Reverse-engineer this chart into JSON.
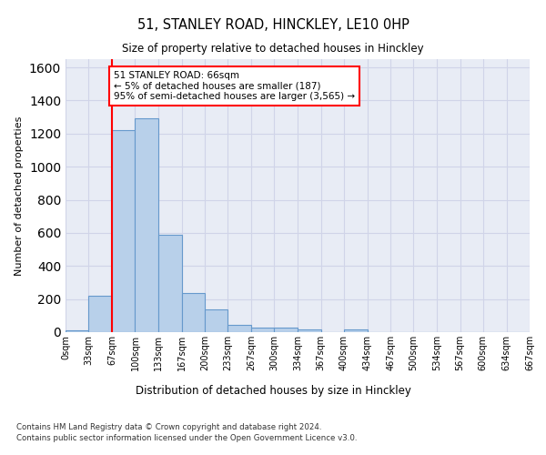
{
  "title": "51, STANLEY ROAD, HINCKLEY, LE10 0HP",
  "subtitle": "Size of property relative to detached houses in Hinckley",
  "xlabel": "Distribution of detached houses by size in Hinckley",
  "ylabel": "Number of detached properties",
  "bar_values": [
    10,
    220,
    1220,
    1290,
    590,
    235,
    135,
    45,
    30,
    25,
    15,
    0,
    15,
    0,
    0,
    0,
    0,
    0,
    0,
    0
  ],
  "bin_edges": [
    0,
    33,
    67,
    100,
    133,
    167,
    200,
    233,
    267,
    300,
    334,
    367,
    400,
    434,
    467,
    500,
    534,
    567,
    600,
    634,
    667
  ],
  "tick_labels": [
    "0sqm",
    "33sqm",
    "67sqm",
    "100sqm",
    "133sqm",
    "167sqm",
    "200sqm",
    "233sqm",
    "267sqm",
    "300sqm",
    "334sqm",
    "367sqm",
    "400sqm",
    "434sqm",
    "467sqm",
    "500sqm",
    "534sqm",
    "567sqm",
    "600sqm",
    "634sqm",
    "667sqm"
  ],
  "bar_color": "#b8d0ea",
  "bar_edge_color": "#6699cc",
  "grid_color": "#d0d4e8",
  "bg_color": "#e8ecf5",
  "property_line_x": 67,
  "annotation_text": "51 STANLEY ROAD: 66sqm\n← 5% of detached houses are smaller (187)\n95% of semi-detached houses are larger (3,565) →",
  "ylim": [
    0,
    1650
  ],
  "footnote1": "Contains HM Land Registry data © Crown copyright and database right 2024.",
  "footnote2": "Contains public sector information licensed under the Open Government Licence v3.0."
}
